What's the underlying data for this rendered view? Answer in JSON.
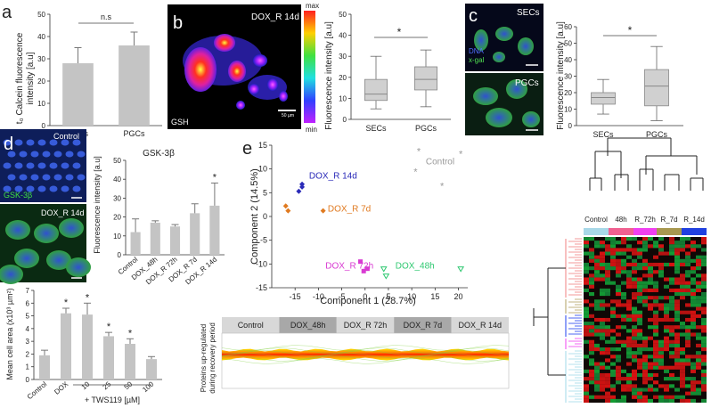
{
  "panels": {
    "a": {
      "letter": "a",
      "ylabel_lines": [
        "t₀ Calcein fluorescence",
        "intensity [a.u]"
      ],
      "sig": "n.s",
      "chart_data": {
        "type": "bar",
        "categories": [
          "SECs",
          "PGCs"
        ],
        "values": [
          28,
          36
        ],
        "errors": [
          7,
          6
        ],
        "ylim": [
          0,
          50
        ],
        "yticks": [
          "0",
          "10",
          "20",
          "30",
          "40",
          "50"
        ]
      }
    },
    "b": {
      "letter": "b",
      "image_label": "DOX_R 14d",
      "image_corner": "GSH",
      "scale": "50 µm",
      "colorbar_max": "max",
      "colorbar_min": "min",
      "ylabel": "Fluorescence intensity [a.u]",
      "sig": "*",
      "chart_data": {
        "type": "box",
        "categories": [
          "SECs",
          "PGCs"
        ],
        "boxes": [
          {
            "min": 5,
            "q1": 9,
            "median": 12,
            "q3": 19,
            "max": 30
          },
          {
            "min": 6,
            "q1": 14,
            "median": 19,
            "q3": 25,
            "max": 33
          }
        ],
        "ylim": [
          0,
          50
        ],
        "yticks": [
          "0",
          "10",
          "20",
          "30",
          "40",
          "50"
        ]
      }
    },
    "c": {
      "letter": "c",
      "image_top_label": "SECs",
      "image_bottom_label": "PGCs",
      "legend_dna": "DNA",
      "legend_xgal": "x-gal",
      "ylabel": "Fluorescence intensity [a.u]",
      "sig": "*",
      "chart_data": {
        "type": "box",
        "categories": [
          "SECs",
          "PGCs"
        ],
        "boxes": [
          {
            "min": 7,
            "q1": 13,
            "median": 17,
            "q3": 20,
            "max": 28
          },
          {
            "min": 3,
            "q1": 12,
            "median": 24,
            "q3": 34,
            "max": 48
          }
        ],
        "ylim": [
          0,
          60
        ],
        "yticks": [
          "0",
          "10",
          "20",
          "30",
          "40",
          "50",
          "60"
        ]
      }
    },
    "d": {
      "letter": "d",
      "image_top_label": "Control",
      "image_top_corner": "GSK-3β",
      "image_bottom_label": "DOX_R 14d",
      "title": "GSK-3β",
      "ylabel": "Fluorescence intensity [a.u]",
      "chart_data": {
        "type": "bar",
        "categories": [
          "Control",
          "DOX_48h",
          "DOX_R 72h",
          "DOX_R 7d",
          "DOX_R 14d"
        ],
        "values": [
          12,
          17,
          15,
          22,
          26
        ],
        "errors": [
          7,
          1,
          1,
          5,
          12
        ],
        "stars": [
          "",
          "",
          "",
          "",
          "*"
        ],
        "ylim": [
          0,
          50
        ],
        "yticks": [
          "0",
          "10",
          "20",
          "30",
          "40",
          "50"
        ]
      }
    },
    "d2": {
      "ylabel_lines": [
        "Mean cell area (x10³ µm²)"
      ],
      "xnote": "+ TWS119 [µM]",
      "chart_data": {
        "type": "bar",
        "categories": [
          "Control",
          "DOX",
          "10",
          "25",
          "50",
          "100"
        ],
        "values": [
          1.9,
          5.2,
          5.1,
          3.4,
          2.8,
          1.6
        ],
        "errors": [
          0.4,
          0.4,
          0.9,
          0.3,
          0.4,
          0.2
        ],
        "stars": [
          "",
          "*",
          "*",
          "*",
          "*",
          ""
        ],
        "ylim": [
          0,
          7
        ],
        "yticks": [
          "0",
          "1",
          "2",
          "3",
          "4",
          "5",
          "6",
          "7"
        ]
      }
    },
    "e": {
      "letter": "e",
      "chart_data": {
        "type": "scatter",
        "xlabel": "Component 1 (28.7%)",
        "ylabel": "Component 2 (14.5%)",
        "xlim": [
          -20,
          22
        ],
        "ylim": [
          -15,
          15
        ],
        "xticks": [
          "-15",
          "-10",
          "-5",
          "0",
          "5",
          "10",
          "15",
          "20"
        ],
        "yticks": [
          "-15",
          "-10",
          "-5",
          "0",
          "5",
          "10",
          "15"
        ],
        "series": [
          {
            "name": "Control",
            "color": "#9a9a9a",
            "marker": "star",
            "points": [
              [
                11.5,
                13.8
              ],
              [
                20.5,
                13.2
              ],
              [
                10.8,
                9.5
              ],
              [
                16.5,
                6.5
              ]
            ],
            "label_at": [
              13,
              11
            ]
          },
          {
            "name": "DOX_R 14d",
            "color": "#2a2ab8",
            "marker": "diamond",
            "points": [
              [
                -13.5,
                6.8
              ],
              [
                -13.5,
                6.2
              ],
              [
                -14.2,
                5.3
              ]
            ],
            "label_at": [
              -12,
              8
            ]
          },
          {
            "name": "DOX_R 7d",
            "color": "#e07a20",
            "marker": "diamond",
            "points": [
              [
                -17,
                2.2
              ],
              [
                -16.5,
                1.2
              ],
              [
                -9,
                1.2
              ]
            ],
            "label_at": [
              -8,
              1
            ]
          },
          {
            "name": "DOX_R 72h",
            "color": "#d93ad2",
            "marker": "square",
            "points": [
              [
                -1,
                -9.5
              ],
              [
                0.5,
                -11
              ],
              [
                -0.3,
                -11.5
              ]
            ],
            "label_at": [
              -8.5,
              -11
            ]
          },
          {
            "name": "DOX_48h",
            "color": "#2ec870",
            "marker": "triangle",
            "points": [
              [
                4,
                -11
              ],
              [
                4.5,
                -12.5
              ],
              [
                20.5,
                -11
              ]
            ],
            "label_at": [
              6.5,
              -11
            ]
          }
        ]
      },
      "profile": {
        "groups": [
          "Control",
          "DOX_48h",
          "DOX_R 72h",
          "DOX_R 7d",
          "DOX_R 14d"
        ],
        "ylabel_lines": [
          "Proteins up-regulated",
          "during recovery period"
        ]
      },
      "heatmap": {
        "groups": [
          "Control",
          "48h",
          "R_72h",
          "R_7d",
          "R_14d"
        ],
        "group_colors": [
          "#a8d8e8",
          "#f06090",
          "#f040f0",
          "#a89850",
          "#2040e0"
        ]
      }
    }
  }
}
